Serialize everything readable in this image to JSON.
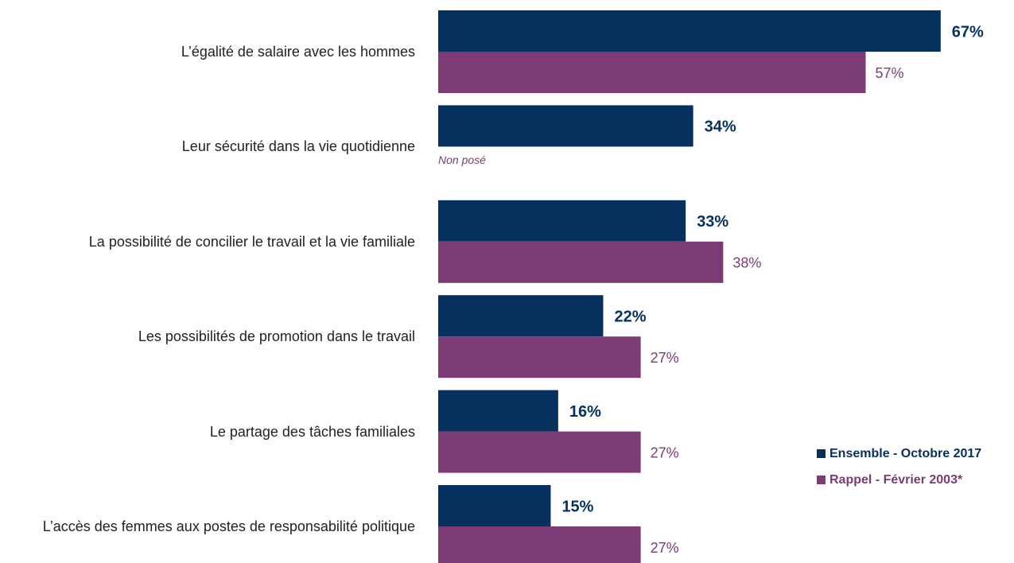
{
  "chart_data": {
    "type": "bar",
    "orientation": "horizontal",
    "categories": [
      "L’égalité de salaire avec les hommes",
      "Leur sécurité dans la vie quotidienne",
      "La possibilité de concilier le travail et la vie familiale",
      "Les possibilités de promotion dans le travail",
      "Le partage des tâches familiales",
      "L’accès des femmes aux postes de responsabilité politique"
    ],
    "series": [
      {
        "name": "Ensemble - Octobre 2017",
        "color": "#06315f",
        "values": [
          67,
          34,
          33,
          22,
          16,
          15
        ],
        "value_labels": [
          "67%",
          "34%",
          "33%",
          "22%",
          "16%",
          "15%"
        ]
      },
      {
        "name": "Rappel - Février 2003*",
        "color": "#7c3b75",
        "values": [
          57,
          null,
          38,
          27,
          27,
          27
        ],
        "value_labels": [
          "57%",
          null,
          "38%",
          "27%",
          "27%",
          "27%"
        ]
      }
    ],
    "missing_label": "Non posé",
    "legend": "bottom-right"
  }
}
